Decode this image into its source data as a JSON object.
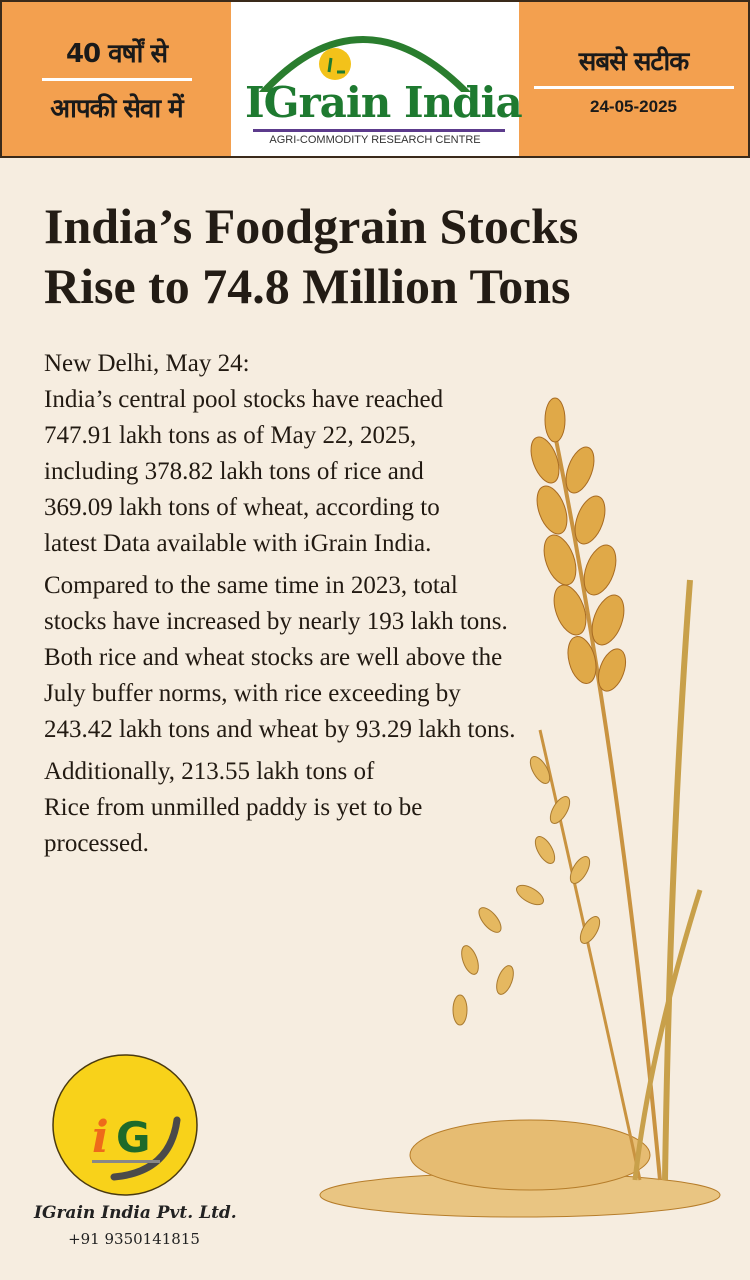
{
  "header": {
    "left_line1": "40 वर्षों से",
    "left_line2": "आपकी सेवा में",
    "brand": "IGrain India",
    "tagline": "AGRI-COMMODITY RESEARCH CENTRE",
    "right_line1": "सबसे सटीक",
    "date": "24-05-2025"
  },
  "headline": {
    "line1": "India’s Foodgrain Stocks",
    "line2": "Rise to 74.8 Million Tons"
  },
  "article": {
    "dateline": "New Delhi, May 24:",
    "p1": "India’s central pool stocks have reached 747.91 lakh tons as of May 22, 2025, including 378.82 lakh tons of rice and 369.09 lakh tons of wheat, according to latest Data available with iGrain India.",
    "p2": "Compared to the same time in 2023, total stocks have increased by nearly 193 lakh tons. Both rice and wheat stocks are well above the July buffer norms, with rice exceeding by 243.42 lakh tons and wheat by 93.29 lakh tons.",
    "p3": "Additionally, 213.55 lakh tons of Rice from unmilled paddy is yet to be processed."
  },
  "footer": {
    "logo_text": "iG",
    "company": "IGrain India Pvt. Ltd.",
    "phone": "+91 9350141815"
  }
}
